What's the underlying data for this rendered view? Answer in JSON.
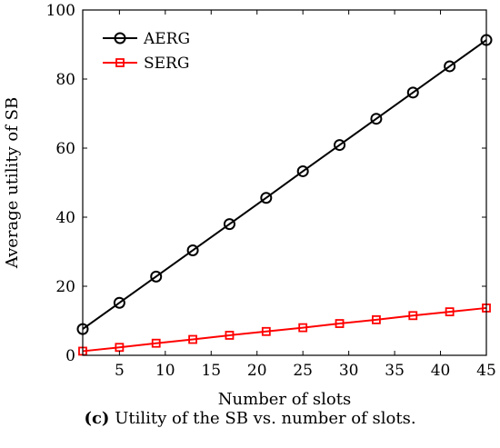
{
  "chart_data": {
    "type": "line",
    "xlabel": "Number of slots",
    "ylabel": "Average utility of SB",
    "xlim": [
      1,
      45
    ],
    "ylim": [
      0,
      100
    ],
    "xticks": [
      5,
      10,
      15,
      20,
      25,
      30,
      35,
      40,
      45
    ],
    "yticks": [
      0,
      20,
      40,
      60,
      80,
      100
    ],
    "legend_position": "top-left",
    "grid": false,
    "series": [
      {
        "name": "AERG",
        "color": "#000000",
        "marker": "circle",
        "x": [
          1,
          5,
          9,
          13,
          17,
          21,
          25,
          29,
          33,
          37,
          41,
          45
        ],
        "y": [
          7.6,
          15.2,
          22.8,
          30.4,
          38.0,
          45.6,
          53.3,
          60.9,
          68.5,
          76.1,
          83.7,
          91.3
        ]
      },
      {
        "name": "SERG",
        "color": "#ff0000",
        "marker": "square",
        "x": [
          1,
          5,
          9,
          13,
          17,
          21,
          25,
          29,
          33,
          37,
          41,
          45
        ],
        "y": [
          1.2,
          2.3,
          3.5,
          4.6,
          5.8,
          6.9,
          8.0,
          9.2,
          10.3,
          11.5,
          12.6,
          13.7
        ]
      }
    ]
  },
  "caption": {
    "prefix": "(c)",
    "text": "Utility of the SB vs. number of slots."
  }
}
